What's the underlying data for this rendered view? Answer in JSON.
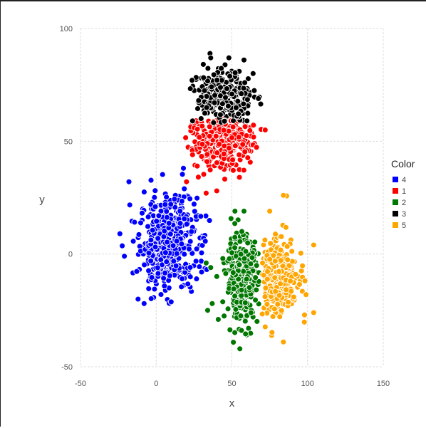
{
  "chart_data": {
    "type": "scatter",
    "title": "",
    "xlabel": "x",
    "ylabel": "y",
    "xlim": [
      -50,
      150
    ],
    "ylim": [
      -50,
      100
    ],
    "xticks": [
      -50,
      0,
      50,
      100,
      150
    ],
    "yticks": [
      -50,
      0,
      50,
      100
    ],
    "grid": true,
    "legend_title": "Color",
    "legend_position": "right",
    "series": [
      {
        "name": "4",
        "color": "#0000ff",
        "center": [
          8,
          5
        ],
        "spread": [
          11,
          12
        ],
        "count": 520,
        "points": [
          [
            -12,
            -20
          ],
          [
            -21,
            -1
          ],
          [
            -8,
            -22
          ],
          [
            30,
            -8
          ],
          [
            -18,
            32
          ],
          [
            -24,
            9
          ],
          [
            18,
            38
          ]
        ]
      },
      {
        "name": "1",
        "color": "#ff0000",
        "center": [
          44,
          50
        ],
        "spread": [
          12,
          7
        ],
        "count": 320,
        "points": [
          [
            20,
            32
          ],
          [
            33,
            27
          ],
          [
            40,
            28
          ],
          [
            72,
            55
          ],
          [
            55,
            34
          ],
          [
            24,
            44
          ]
        ]
      },
      {
        "name": "2",
        "color": "#007700",
        "center": [
          57,
          -11
        ],
        "spread": [
          6,
          11
        ],
        "count": 360,
        "points": [
          [
            34,
            -25
          ],
          [
            37,
            -22
          ],
          [
            40,
            -10
          ],
          [
            44,
            -2
          ],
          [
            36,
            -6
          ],
          [
            52,
            19
          ],
          [
            58,
            19
          ],
          [
            41,
            -29
          ],
          [
            33,
            -4
          ]
        ]
      },
      {
        "name": "3",
        "color": "#000000",
        "center": [
          45,
          70
        ],
        "spread": [
          11,
          7
        ],
        "count": 260,
        "points": [
          [
            36,
            87
          ],
          [
            48,
            87
          ],
          [
            58,
            86
          ],
          [
            64,
            80
          ],
          [
            28,
            68
          ],
          [
            24,
            59
          ]
        ]
      },
      {
        "name": "5",
        "color": "#ffa500",
        "center": [
          81,
          -10
        ],
        "spread": [
          7,
          11
        ],
        "count": 320,
        "points": [
          [
            84,
            26
          ],
          [
            104,
            4
          ],
          [
            104,
            -26
          ],
          [
            75,
            19
          ],
          [
            99,
            -18
          ],
          [
            84,
            -39
          ],
          [
            98,
            -27
          ]
        ]
      }
    ]
  }
}
